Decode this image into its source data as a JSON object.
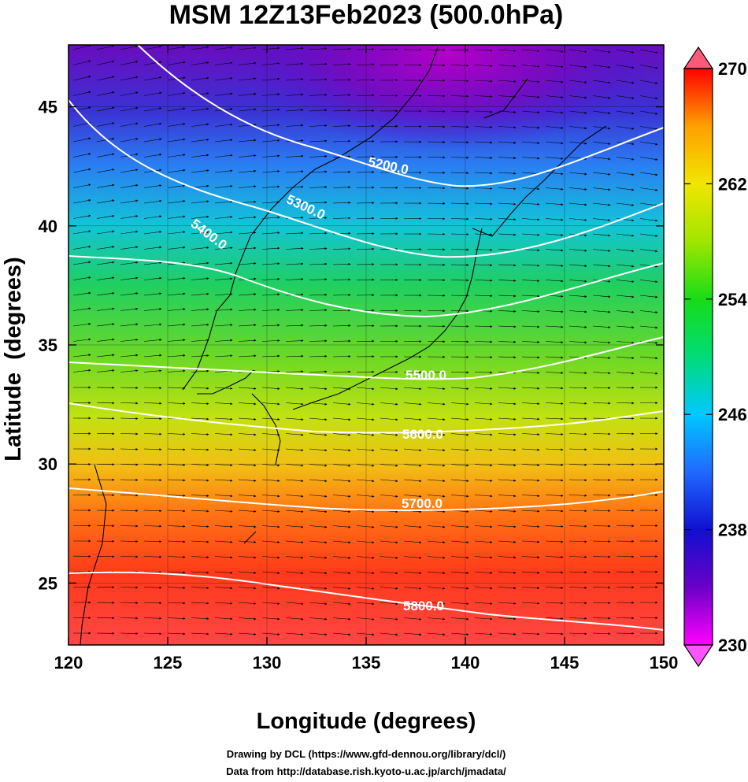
{
  "chart_data": {
    "type": "heatmap",
    "title": "MSM 12Z13Feb2023 (500.0hPa)",
    "xlabel": "Longitude (degrees)",
    "ylabel": "Latitude  (degrees)",
    "xlim": [
      120,
      150
    ],
    "ylim": [
      22.4,
      47.6
    ],
    "x_ticks": [
      120,
      125,
      130,
      135,
      140,
      145,
      150
    ],
    "y_ticks": [
      25,
      30,
      35,
      40,
      45
    ],
    "grid": true,
    "shaded_field": {
      "min": 230,
      "max": 270,
      "colorbar_ticks": [
        230,
        238,
        246,
        254,
        262,
        270
      ],
      "colorbar_position": "right"
    },
    "contour_field": {
      "levels": [
        5200,
        5300,
        5400,
        5500,
        5600,
        5700,
        5800
      ],
      "labels": [
        "5200.0",
        "5300.0",
        "5400.0",
        "5500.0",
        "5600.0",
        "5700.0",
        "5800.0"
      ]
    },
    "colors": {
      "colormap": [
        "#ff00ff",
        "#6a00c8",
        "#1010d0",
        "#2068ff",
        "#00c8ff",
        "#00dc78",
        "#18dc18",
        "#a0e600",
        "#f0e600",
        "#ffa000",
        "#ff3000",
        "#ff0000"
      ],
      "contour": "#ffffff",
      "vectors": "#000000"
    },
    "credits": [
      "Drawing by DCL (https://www.gfd-dennou.org/library/dcl/)",
      "Data from http://database.rish.kyoto-u.ac.jp/arch/jmadata/"
    ]
  }
}
